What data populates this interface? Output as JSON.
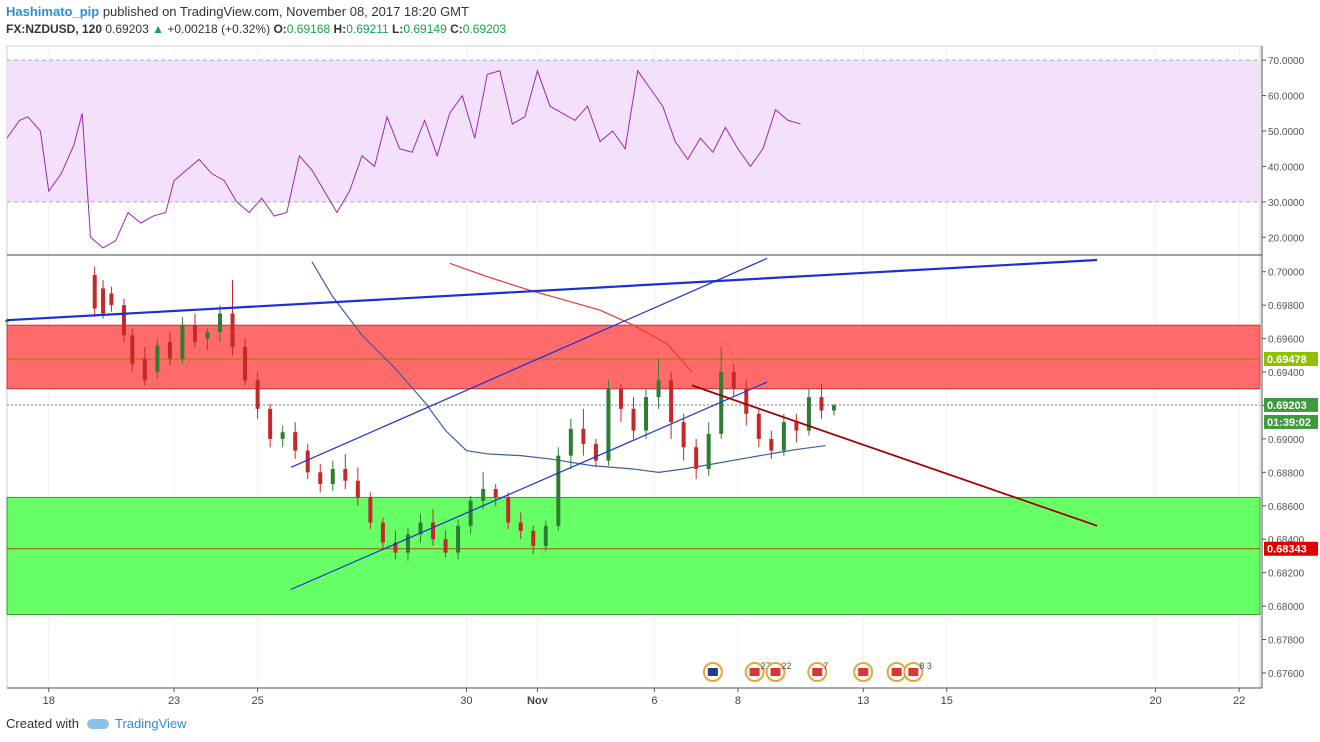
{
  "header": {
    "user": "Hashimato_pip",
    "published": "published on TradingView.com, November 08, 2017 18:20 GMT",
    "symbol": "FX:NZDUSD, 120",
    "last": "0.69203",
    "change_icon": "triangle-up-icon",
    "change": "+0.00218 (+0.32%)",
    "o_label": "O:",
    "o": "0.69168",
    "h_label": "H:",
    "h": "0.69211",
    "l_label": "L:",
    "l": "0.69149",
    "c_label": "C:",
    "c": "0.69203"
  },
  "footer": {
    "created": "Created with",
    "brand": "TradingView",
    "brand_icon": "tradingview-cloud-icon"
  },
  "colors": {
    "up": "#2e7d32",
    "down": "#c62828",
    "rsi": "#9c27b0",
    "rsi_band": "#f3e0fb",
    "resistance_zone": "#ff6b6b",
    "support_zone": "#66ff66",
    "trend_blue": "#1a2fd6",
    "ma_line": "#3b5fa0",
    "ma_red": "#e53935",
    "trend_dark": "#a30000"
  },
  "chart_data": {
    "type": "candlestick",
    "symbol": "FX:NZDUSD",
    "timeframe": "120",
    "price_axis": {
      "ticks": [
        "0.70000",
        "0.69800",
        "0.69600",
        "0.69400",
        "0.69200",
        "0.69000",
        "0.68800",
        "0.68600",
        "0.68400",
        "0.68200",
        "0.68000",
        "0.67800",
        "0.67600"
      ],
      "ylim": [
        0.6751,
        0.701
      ]
    },
    "rsi_axis": {
      "ticks": [
        "70.0000",
        "60.0000",
        "50.0000",
        "40.0000",
        "30.0000",
        "20.0000"
      ],
      "ylim": [
        15,
        74
      ],
      "band": [
        30,
        70
      ]
    },
    "time_axis": {
      "labels": [
        "18",
        "23",
        "25",
        "30",
        "Nov",
        "6",
        "8",
        "13",
        "15",
        "20",
        "22"
      ],
      "positions": [
        1,
        4,
        6,
        11,
        12.7,
        15.5,
        17.5,
        20.5,
        22.5,
        27.5,
        29.5
      ],
      "range": [
        0,
        30
      ]
    },
    "price_labels": [
      {
        "value": "0.69478",
        "kind": "level"
      },
      {
        "value": "0.69203",
        "kind": "last"
      },
      {
        "value": "01:39:02",
        "kind": "countdown"
      },
      {
        "value": "0.68343",
        "kind": "level-red"
      }
    ],
    "zones": [
      {
        "name": "resistance",
        "from": 0.693,
        "to": 0.6968
      },
      {
        "name": "support",
        "from": 0.6795,
        "to": 0.6865
      }
    ],
    "horizontal_levels": [
      0.69478,
      0.68343,
      0.69203
    ],
    "trendlines": [
      {
        "name": "long-blue",
        "points": [
          [
            0,
            0.6971
          ],
          [
            26.1,
            0.7007
          ]
        ]
      },
      {
        "name": "channel-upper",
        "points": [
          [
            6.8,
            0.6883
          ],
          [
            18.2,
            0.7008
          ]
        ]
      },
      {
        "name": "channel-lower",
        "points": [
          [
            6.8,
            0.681
          ],
          [
            18.2,
            0.6934
          ]
        ]
      },
      {
        "name": "dark-red-down",
        "points": [
          [
            16.4,
            0.6932
          ],
          [
            26.1,
            0.6848
          ]
        ]
      }
    ],
    "moving_averages": [
      {
        "name": "blue-ma",
        "points": [
          [
            7.3,
            0.7006
          ],
          [
            7.8,
            0.6985
          ],
          [
            8.5,
            0.6962
          ],
          [
            9.3,
            0.6942
          ],
          [
            10,
            0.6922
          ],
          [
            10.5,
            0.6905
          ],
          [
            11,
            0.6893
          ],
          [
            11.5,
            0.6891
          ],
          [
            12.3,
            0.689
          ],
          [
            13,
            0.6888
          ],
          [
            14,
            0.6884
          ],
          [
            15,
            0.6882
          ],
          [
            15.6,
            0.688
          ],
          [
            16.2,
            0.6882
          ],
          [
            16.9,
            0.6885
          ],
          [
            17.8,
            0.6889
          ],
          [
            18.5,
            0.6892
          ],
          [
            19,
            0.6894
          ],
          [
            19.6,
            0.6896
          ],
          [
            16.4,
            0.6889
          ]
        ]
      },
      {
        "name": "red-ma",
        "points": [
          [
            10.6,
            0.7005
          ],
          [
            11.5,
            0.6997
          ],
          [
            12.5,
            0.6989
          ],
          [
            13.5,
            0.6982
          ],
          [
            14.2,
            0.6977
          ],
          [
            15,
            0.6968
          ],
          [
            15.8,
            0.6957
          ],
          [
            16.4,
            0.694
          ]
        ]
      }
    ],
    "rsi": [
      [
        0,
        48
      ],
      [
        0.3,
        53
      ],
      [
        0.5,
        54
      ],
      [
        0.8,
        50
      ],
      [
        1.0,
        33
      ],
      [
        1.3,
        38
      ],
      [
        1.6,
        46
      ],
      [
        1.8,
        55
      ],
      [
        2.0,
        20
      ],
      [
        2.3,
        17
      ],
      [
        2.6,
        19
      ],
      [
        2.9,
        27
      ],
      [
        3.2,
        24
      ],
      [
        3.5,
        26
      ],
      [
        3.8,
        27
      ],
      [
        4.0,
        36
      ],
      [
        4.3,
        39
      ],
      [
        4.6,
        42
      ],
      [
        4.9,
        38
      ],
      [
        5.2,
        36
      ],
      [
        5.5,
        30
      ],
      [
        5.8,
        27
      ],
      [
        6.1,
        31
      ],
      [
        6.4,
        26
      ],
      [
        6.7,
        27
      ],
      [
        7.0,
        43
      ],
      [
        7.3,
        39
      ],
      [
        7.6,
        33
      ],
      [
        7.9,
        27
      ],
      [
        8.2,
        33
      ],
      [
        8.5,
        43
      ],
      [
        8.8,
        40
      ],
      [
        9.1,
        54
      ],
      [
        9.4,
        45
      ],
      [
        9.7,
        44
      ],
      [
        10.0,
        53
      ],
      [
        10.3,
        43
      ],
      [
        10.6,
        55
      ],
      [
        10.9,
        60
      ],
      [
        11.2,
        48
      ],
      [
        11.5,
        66
      ],
      [
        11.8,
        67
      ],
      [
        12.1,
        52
      ],
      [
        12.4,
        54
      ],
      [
        12.7,
        67
      ],
      [
        13.0,
        57
      ],
      [
        13.3,
        55
      ],
      [
        13.6,
        53
      ],
      [
        13.9,
        57
      ],
      [
        14.2,
        47
      ],
      [
        14.5,
        50
      ],
      [
        14.8,
        45
      ],
      [
        15.1,
        67
      ],
      [
        15.4,
        62
      ],
      [
        15.7,
        57
      ],
      [
        16.0,
        47
      ],
      [
        16.3,
        42
      ],
      [
        16.6,
        48
      ],
      [
        16.9,
        44
      ],
      [
        17.2,
        51
      ],
      [
        17.5,
        45
      ],
      [
        17.8,
        40
      ],
      [
        18.1,
        45
      ],
      [
        18.4,
        56
      ],
      [
        18.7,
        53
      ],
      [
        19.0,
        52
      ]
    ],
    "candles": [
      [
        0.0,
        0.697,
        0.6971,
        0.6968,
        0.6972
      ],
      [
        2.1,
        0.6998,
        0.6978,
        0.6973,
        0.7003
      ],
      [
        2.3,
        0.699,
        0.6975,
        0.6972,
        0.6995
      ],
      [
        2.5,
        0.6987,
        0.698,
        0.6976,
        0.6991
      ],
      [
        2.8,
        0.698,
        0.6962,
        0.6958,
        0.6984
      ],
      [
        3.0,
        0.6962,
        0.6945,
        0.694,
        0.6966
      ],
      [
        3.3,
        0.6948,
        0.6935,
        0.6932,
        0.6955
      ],
      [
        3.6,
        0.694,
        0.6956,
        0.6936,
        0.696
      ],
      [
        3.9,
        0.6958,
        0.6948,
        0.6944,
        0.6964
      ],
      [
        4.2,
        0.6948,
        0.6968,
        0.6945,
        0.6973
      ],
      [
        4.5,
        0.6968,
        0.6958,
        0.6955,
        0.6975
      ],
      [
        4.8,
        0.696,
        0.6964,
        0.6953,
        0.6966
      ],
      [
        5.1,
        0.6964,
        0.6975,
        0.6958,
        0.698
      ],
      [
        5.4,
        0.6975,
        0.6955,
        0.695,
        0.6995
      ],
      [
        5.7,
        0.6955,
        0.6935,
        0.6932,
        0.696
      ],
      [
        6.0,
        0.6935,
        0.6918,
        0.6912,
        0.694
      ],
      [
        6.3,
        0.6918,
        0.69,
        0.6895,
        0.6921
      ],
      [
        6.6,
        0.69,
        0.6904,
        0.6895,
        0.6908
      ],
      [
        6.9,
        0.6904,
        0.6893,
        0.6888,
        0.691
      ],
      [
        7.2,
        0.6893,
        0.688,
        0.6876,
        0.6897
      ],
      [
        7.5,
        0.688,
        0.6873,
        0.6868,
        0.6885
      ],
      [
        7.8,
        0.6873,
        0.6882,
        0.6869,
        0.6887
      ],
      [
        8.1,
        0.6882,
        0.6875,
        0.687,
        0.6891
      ],
      [
        8.4,
        0.6875,
        0.6865,
        0.686,
        0.6883
      ],
      [
        8.7,
        0.6865,
        0.685,
        0.6846,
        0.6868
      ],
      [
        9.0,
        0.685,
        0.6838,
        0.6834,
        0.6853
      ],
      [
        9.3,
        0.6838,
        0.6832,
        0.6828,
        0.6845
      ],
      [
        9.6,
        0.6832,
        0.6843,
        0.6827,
        0.6847
      ],
      [
        9.9,
        0.6843,
        0.685,
        0.6838,
        0.6855
      ],
      [
        10.2,
        0.685,
        0.684,
        0.6836,
        0.6858
      ],
      [
        10.5,
        0.684,
        0.6832,
        0.6829,
        0.6845
      ],
      [
        10.8,
        0.6832,
        0.6848,
        0.6828,
        0.6852
      ],
      [
        11.1,
        0.6848,
        0.6863,
        0.6843,
        0.6866
      ],
      [
        11.4,
        0.6863,
        0.687,
        0.6858,
        0.688
      ],
      [
        11.7,
        0.687,
        0.6865,
        0.686,
        0.6873
      ],
      [
        12.0,
        0.6865,
        0.685,
        0.6846,
        0.6868
      ],
      [
        12.3,
        0.685,
        0.6845,
        0.684,
        0.6856
      ],
      [
        12.6,
        0.6845,
        0.6836,
        0.6831,
        0.6848
      ],
      [
        12.9,
        0.6836,
        0.6848,
        0.6833,
        0.6851
      ],
      [
        13.2,
        0.6848,
        0.689,
        0.6845,
        0.6895
      ],
      [
        13.5,
        0.689,
        0.6906,
        0.6882,
        0.6912
      ],
      [
        13.8,
        0.6906,
        0.6897,
        0.689,
        0.6918
      ],
      [
        14.1,
        0.6897,
        0.6887,
        0.6883,
        0.69
      ],
      [
        14.4,
        0.6887,
        0.693,
        0.6884,
        0.6935
      ],
      [
        14.7,
        0.693,
        0.6918,
        0.691,
        0.6933
      ],
      [
        15.0,
        0.6918,
        0.6905,
        0.69,
        0.6925
      ],
      [
        15.3,
        0.6905,
        0.6925,
        0.69,
        0.693
      ],
      [
        15.6,
        0.6925,
        0.6935,
        0.6918,
        0.6948
      ],
      [
        15.9,
        0.6935,
        0.691,
        0.69,
        0.694
      ],
      [
        16.2,
        0.691,
        0.6895,
        0.6887,
        0.6915
      ],
      [
        16.5,
        0.6895,
        0.6882,
        0.6876,
        0.69
      ],
      [
        16.8,
        0.6882,
        0.6903,
        0.6878,
        0.691
      ],
      [
        17.1,
        0.6903,
        0.694,
        0.69,
        0.6955
      ],
      [
        17.4,
        0.694,
        0.693,
        0.6925,
        0.6945
      ],
      [
        17.7,
        0.693,
        0.6915,
        0.6908,
        0.6935
      ],
      [
        18.0,
        0.6915,
        0.69,
        0.6895,
        0.6918
      ],
      [
        18.3,
        0.69,
        0.6893,
        0.6888,
        0.6905
      ],
      [
        18.6,
        0.6893,
        0.691,
        0.689,
        0.6915
      ],
      [
        18.9,
        0.691,
        0.6905,
        0.6898,
        0.6915
      ],
      [
        19.2,
        0.6905,
        0.6925,
        0.6902,
        0.693
      ],
      [
        19.5,
        0.6925,
        0.6917,
        0.6912,
        0.6933
      ],
      [
        19.8,
        0.6917,
        0.692,
        0.6914,
        0.6921
      ]
    ],
    "events": [
      {
        "icon": "nz-flag-event-icon",
        "x": 16.9
      },
      {
        "icon": "us-flag-event-icon",
        "x": 17.9,
        "label": "27"
      },
      {
        "icon": "us-flag-event-icon",
        "x": 18.4,
        "label": "22"
      },
      {
        "icon": "us-flag-event-icon",
        "x": 19.4,
        "label": "7"
      },
      {
        "icon": "us-flag-event-icon",
        "x": 20.5,
        "label": ""
      },
      {
        "icon": "us-flag-event-icon",
        "x": 21.3,
        "label": ""
      },
      {
        "icon": "us-flag-event-icon",
        "x": 21.7,
        "label": "8 3"
      }
    ]
  }
}
